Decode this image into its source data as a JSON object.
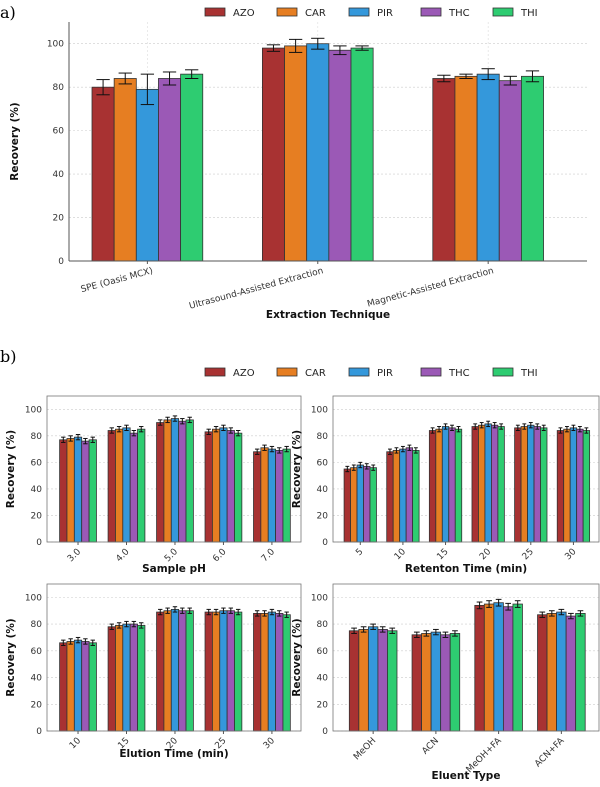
{
  "panel_labels": [
    "a)",
    "b)"
  ],
  "legend": [
    "AZO",
    "CAR",
    "PIR",
    "THC",
    "THI"
  ],
  "colors": {
    "AZO": "#a83232",
    "CAR": "#e67e22",
    "PIR": "#3498db",
    "THC": "#9b59b6",
    "THI": "#2ecc71"
  },
  "chart_data": [
    {
      "type": "bar",
      "panel": "a)",
      "xlabel": "Extraction Technique",
      "ylabel": "Recovery (%)",
      "ylim": [
        0,
        110
      ],
      "yticks": [
        0,
        20,
        40,
        60,
        80,
        100
      ],
      "grid": true,
      "legend_placement": "top-center",
      "categories": [
        "SPE (Oasis MCX)",
        "Ultrasound-Assisted Extraction",
        "Magnetic-Assisted Extraction"
      ],
      "series": [
        {
          "name": "AZO",
          "values": [
            80,
            98,
            84
          ],
          "errors": [
            3.5,
            1.5,
            1.5
          ]
        },
        {
          "name": "CAR",
          "values": [
            84,
            99,
            85
          ],
          "errors": [
            2.5,
            3,
            1
          ]
        },
        {
          "name": "PIR",
          "values": [
            79,
            100,
            86
          ],
          "errors": [
            7,
            2.5,
            2.5
          ]
        },
        {
          "name": "THC",
          "values": [
            84,
            97,
            83
          ],
          "errors": [
            3,
            2,
            2
          ]
        },
        {
          "name": "THI",
          "values": [
            86,
            98,
            85
          ],
          "errors": [
            2,
            1,
            2.5
          ]
        }
      ]
    },
    {
      "type": "bar",
      "panel": "b)",
      "xlabel": "Sample pH",
      "ylabel": "Recovery (%)",
      "ylim": [
        0,
        110
      ],
      "yticks": [
        0,
        20,
        40,
        60,
        80,
        100
      ],
      "grid": true,
      "categories": [
        "3.0",
        "4.0",
        "5.0",
        "6.0",
        "7.0"
      ],
      "series": [
        {
          "name": "AZO",
          "values": [
            77,
            84,
            90,
            83,
            68
          ],
          "errors": [
            2,
            2,
            2,
            2,
            2
          ]
        },
        {
          "name": "CAR",
          "values": [
            78,
            85,
            92,
            85,
            71
          ],
          "errors": [
            2,
            2,
            2,
            2,
            2
          ]
        },
        {
          "name": "PIR",
          "values": [
            79,
            86,
            93,
            86,
            70
          ],
          "errors": [
            2,
            2,
            2,
            2,
            2
          ]
        },
        {
          "name": "THC",
          "values": [
            76,
            82,
            91,
            84,
            69
          ],
          "errors": [
            2,
            2,
            2,
            2,
            2
          ]
        },
        {
          "name": "THI",
          "values": [
            77,
            85,
            92,
            82,
            70
          ],
          "errors": [
            2,
            2,
            2,
            2,
            2
          ]
        }
      ]
    },
    {
      "type": "bar",
      "panel": "b)",
      "xlabel": "Retenton Time (min)",
      "ylabel": "Recovery (%)",
      "ylim": [
        0,
        110
      ],
      "yticks": [
        0,
        20,
        40,
        60,
        80,
        100
      ],
      "grid": true,
      "categories": [
        "5",
        "10",
        "15",
        "20",
        "25",
        "30"
      ],
      "series": [
        {
          "name": "AZO",
          "values": [
            55,
            68,
            84,
            87,
            86,
            84
          ],
          "errors": [
            2,
            2,
            2,
            2,
            2,
            2
          ]
        },
        {
          "name": "CAR",
          "values": [
            56,
            69,
            85,
            88,
            87,
            85
          ],
          "errors": [
            2,
            2,
            2,
            2,
            2,
            2
          ]
        },
        {
          "name": "PIR",
          "values": [
            58,
            70,
            87,
            89,
            88,
            86
          ],
          "errors": [
            2,
            2,
            2,
            2,
            2,
            2
          ]
        },
        {
          "name": "THC",
          "values": [
            57,
            71,
            86,
            88,
            87,
            85
          ],
          "errors": [
            2,
            2,
            2,
            2,
            2,
            2
          ]
        },
        {
          "name": "THI",
          "values": [
            56,
            69,
            85,
            87,
            86,
            84
          ],
          "errors": [
            2,
            2,
            2,
            2,
            2,
            2
          ]
        }
      ]
    },
    {
      "type": "bar",
      "panel": "b)",
      "xlabel": "Elution Time (min)",
      "ylabel": "Recovery (%)",
      "ylim": [
        0,
        110
      ],
      "yticks": [
        0,
        20,
        40,
        60,
        80,
        100
      ],
      "grid": true,
      "categories": [
        "10",
        "15",
        "20",
        "25",
        "30"
      ],
      "series": [
        {
          "name": "AZO",
          "values": [
            66,
            78,
            89,
            89,
            88
          ],
          "errors": [
            2,
            2,
            2,
            2,
            2
          ]
        },
        {
          "name": "CAR",
          "values": [
            67,
            79,
            90,
            89,
            88
          ],
          "errors": [
            2,
            2,
            2,
            2,
            2
          ]
        },
        {
          "name": "PIR",
          "values": [
            68,
            80,
            91,
            90,
            89
          ],
          "errors": [
            2,
            2,
            2,
            2,
            2
          ]
        },
        {
          "name": "THC",
          "values": [
            67,
            80,
            90,
            90,
            88
          ],
          "errors": [
            2,
            2,
            2,
            2,
            2
          ]
        },
        {
          "name": "THI",
          "values": [
            66,
            79,
            90,
            89,
            87
          ],
          "errors": [
            2,
            2,
            2,
            2,
            2
          ]
        }
      ]
    },
    {
      "type": "bar",
      "panel": "b)",
      "xlabel": "Eluent Type",
      "ylabel": "Recovery (%)",
      "ylim": [
        0,
        110
      ],
      "yticks": [
        0,
        20,
        40,
        60,
        80,
        100
      ],
      "grid": true,
      "categories": [
        "MeOH",
        "ACN",
        "MeOH+FA",
        "ACN+FA"
      ],
      "series": [
        {
          "name": "AZO",
          "values": [
            75,
            72,
            94,
            87
          ],
          "errors": [
            2,
            2,
            2.5,
            2
          ]
        },
        {
          "name": "CAR",
          "values": [
            76,
            73,
            95,
            88
          ],
          "errors": [
            2,
            2,
            2.5,
            2
          ]
        },
        {
          "name": "PIR",
          "values": [
            78,
            74,
            96,
            89
          ],
          "errors": [
            2,
            2,
            2.5,
            2
          ]
        },
        {
          "name": "THC",
          "values": [
            76,
            72,
            93,
            86
          ],
          "errors": [
            2,
            2,
            2.5,
            2
          ]
        },
        {
          "name": "THI",
          "values": [
            75,
            73,
            95,
            88
          ],
          "errors": [
            2,
            2,
            2.5,
            2
          ]
        }
      ]
    }
  ]
}
